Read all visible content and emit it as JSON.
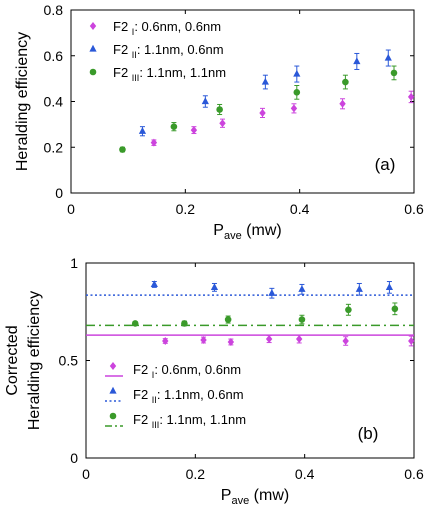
{
  "chart_data": [
    {
      "type": "scatter",
      "panel": "(a)",
      "xlabel": "P_ave (mw)",
      "xlabel_main": "P",
      "xlabel_sub": "ave",
      "xlabel_unit": " (mw)",
      "ylabel": "Heralding efficiency",
      "ylabel_lines": [
        "Heralding efficiency"
      ],
      "xlim": [
        0,
        0.6
      ],
      "ylim": [
        0,
        0.8
      ],
      "xticks": [
        0,
        0.2,
        0.4,
        0.6
      ],
      "xtick_labels": [
        "0",
        "0.2",
        "0.4",
        "0.6"
      ],
      "yticks": [
        0,
        0.2,
        0.4,
        0.6,
        0.8
      ],
      "ytick_labels": [
        "0",
        "0.2",
        "0.4",
        "0.6",
        "0.8"
      ],
      "grid": false,
      "legend_position": "top-left",
      "series": [
        {
          "name_main": "F2",
          "name_sub": "I",
          "name_rest": ": 0.6nm, 0.6nm",
          "color": "#cc44dd",
          "marker": "diamond",
          "x": [
            0.145,
            0.215,
            0.265,
            0.335,
            0.39,
            0.475,
            0.595
          ],
          "y": [
            0.22,
            0.275,
            0.305,
            0.35,
            0.37,
            0.39,
            0.42
          ],
          "err": [
            0.012,
            0.015,
            0.018,
            0.02,
            0.02,
            0.022,
            0.025
          ]
        },
        {
          "name_main": "F2",
          "name_sub": "II",
          "name_rest": ": 1.1nm, 0.6nm",
          "color": "#2a58d8",
          "marker": "triangle",
          "x": [
            0.125,
            0.235,
            0.34,
            0.395,
            0.5,
            0.555
          ],
          "y": [
            0.27,
            0.4,
            0.485,
            0.52,
            0.575,
            0.59
          ],
          "err": [
            0.02,
            0.025,
            0.03,
            0.035,
            0.035,
            0.035
          ]
        },
        {
          "name_main": "F2",
          "name_sub": "III",
          "name_rest": ": 1.1nm, 1.1nm",
          "color": "#3a9a2a",
          "marker": "circle",
          "x": [
            0.09,
            0.18,
            0.26,
            0.395,
            0.48,
            0.565
          ],
          "y": [
            0.19,
            0.29,
            0.365,
            0.44,
            0.485,
            0.525
          ],
          "err": [
            0.01,
            0.018,
            0.022,
            0.03,
            0.03,
            0.03
          ]
        }
      ]
    },
    {
      "type": "scatter",
      "panel": "(b)",
      "xlabel": "P_ave (mw)",
      "xlabel_main": "P",
      "xlabel_sub": "ave",
      "xlabel_unit": " (mw)",
      "ylabel": "Corrected Heralding efficiency",
      "ylabel_lines": [
        "Corrected",
        "Heralding efficiency"
      ],
      "xlim": [
        0,
        0.6
      ],
      "ylim": [
        0,
        1
      ],
      "xticks": [
        0,
        0.2,
        0.4,
        0.6
      ],
      "xtick_labels": [
        "0",
        "0.2",
        "0.4",
        "0.6"
      ],
      "yticks": [
        0,
        0.5,
        1
      ],
      "ytick_labels": [
        "0",
        "0.5",
        "1"
      ],
      "grid": false,
      "legend_position": "bottom-left",
      "series": [
        {
          "name_main": "F2",
          "name_sub": "I",
          "name_rest": ": 0.6nm, 0.6nm",
          "color": "#cc44dd",
          "marker": "diamond",
          "x": [
            0.145,
            0.215,
            0.265,
            0.335,
            0.39,
            0.475,
            0.595
          ],
          "y": [
            0.6,
            0.605,
            0.595,
            0.61,
            0.61,
            0.6,
            0.6
          ],
          "err": [
            0.012,
            0.015,
            0.015,
            0.018,
            0.02,
            0.022,
            0.025
          ],
          "fit_y": 0.63,
          "fit_style": "solid"
        },
        {
          "name_main": "F2",
          "name_sub": "II",
          "name_rest": ": 1.1nm, 0.6nm",
          "color": "#2a58d8",
          "marker": "triangle",
          "x": [
            0.125,
            0.235,
            0.34,
            0.395,
            0.5,
            0.555
          ],
          "y": [
            0.89,
            0.875,
            0.845,
            0.865,
            0.865,
            0.875
          ],
          "err": [
            0.015,
            0.02,
            0.025,
            0.025,
            0.03,
            0.03
          ],
          "fit_y": 0.835,
          "fit_style": "dotted"
        },
        {
          "name_main": "F2",
          "name_sub": "III",
          "name_rest": ": 1.1nm, 1.1nm",
          "color": "#3a9a2a",
          "marker": "circle",
          "x": [
            0.09,
            0.18,
            0.26,
            0.395,
            0.48,
            0.565
          ],
          "y": [
            0.69,
            0.69,
            0.71,
            0.71,
            0.76,
            0.765
          ],
          "err": [
            0.006,
            0.012,
            0.018,
            0.022,
            0.028,
            0.03
          ],
          "fit_y": 0.68,
          "fit_style": "dashdot"
        }
      ]
    }
  ]
}
